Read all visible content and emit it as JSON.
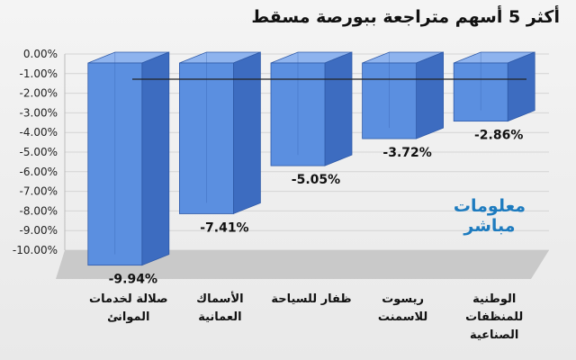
{
  "title": "أكثر 5 أسهم متراجعة ببورصة مسقط",
  "logo": {
    "line1": "معلومات",
    "line2": "مباشر"
  },
  "colors": {
    "bar_front": "#5b8fe0",
    "bar_side": "#3d6cc0",
    "bar_top": "#8eb3ee",
    "floor": "#c9c9c9"
  },
  "chart_data": {
    "type": "bar",
    "categories": [
      [
        "صلالة لخدمات",
        "الموانئ"
      ],
      [
        "الأسماك",
        "العمانية"
      ],
      [
        "ظفار للسياحة"
      ],
      [
        "ريسوت",
        "للاسمنت"
      ],
      [
        "الوطنية",
        "للمنظفات",
        "الصناعية"
      ]
    ],
    "values": [
      -9.94,
      -7.41,
      -5.05,
      -3.72,
      -2.86
    ],
    "data_labels": [
      "-9.94%",
      "-7.41%",
      "-5.05%",
      "-3.72%",
      "-2.86%"
    ],
    "y_ticks": [
      "0.00%",
      "-1.00%",
      "-2.00%",
      "-3.00%",
      "-4.00%",
      "-5.00%",
      "-6.00%",
      "-7.00%",
      "-8.00%",
      "-9.00%",
      "-10.00%"
    ],
    "ylim": [
      -10,
      0
    ],
    "grid": true
  }
}
